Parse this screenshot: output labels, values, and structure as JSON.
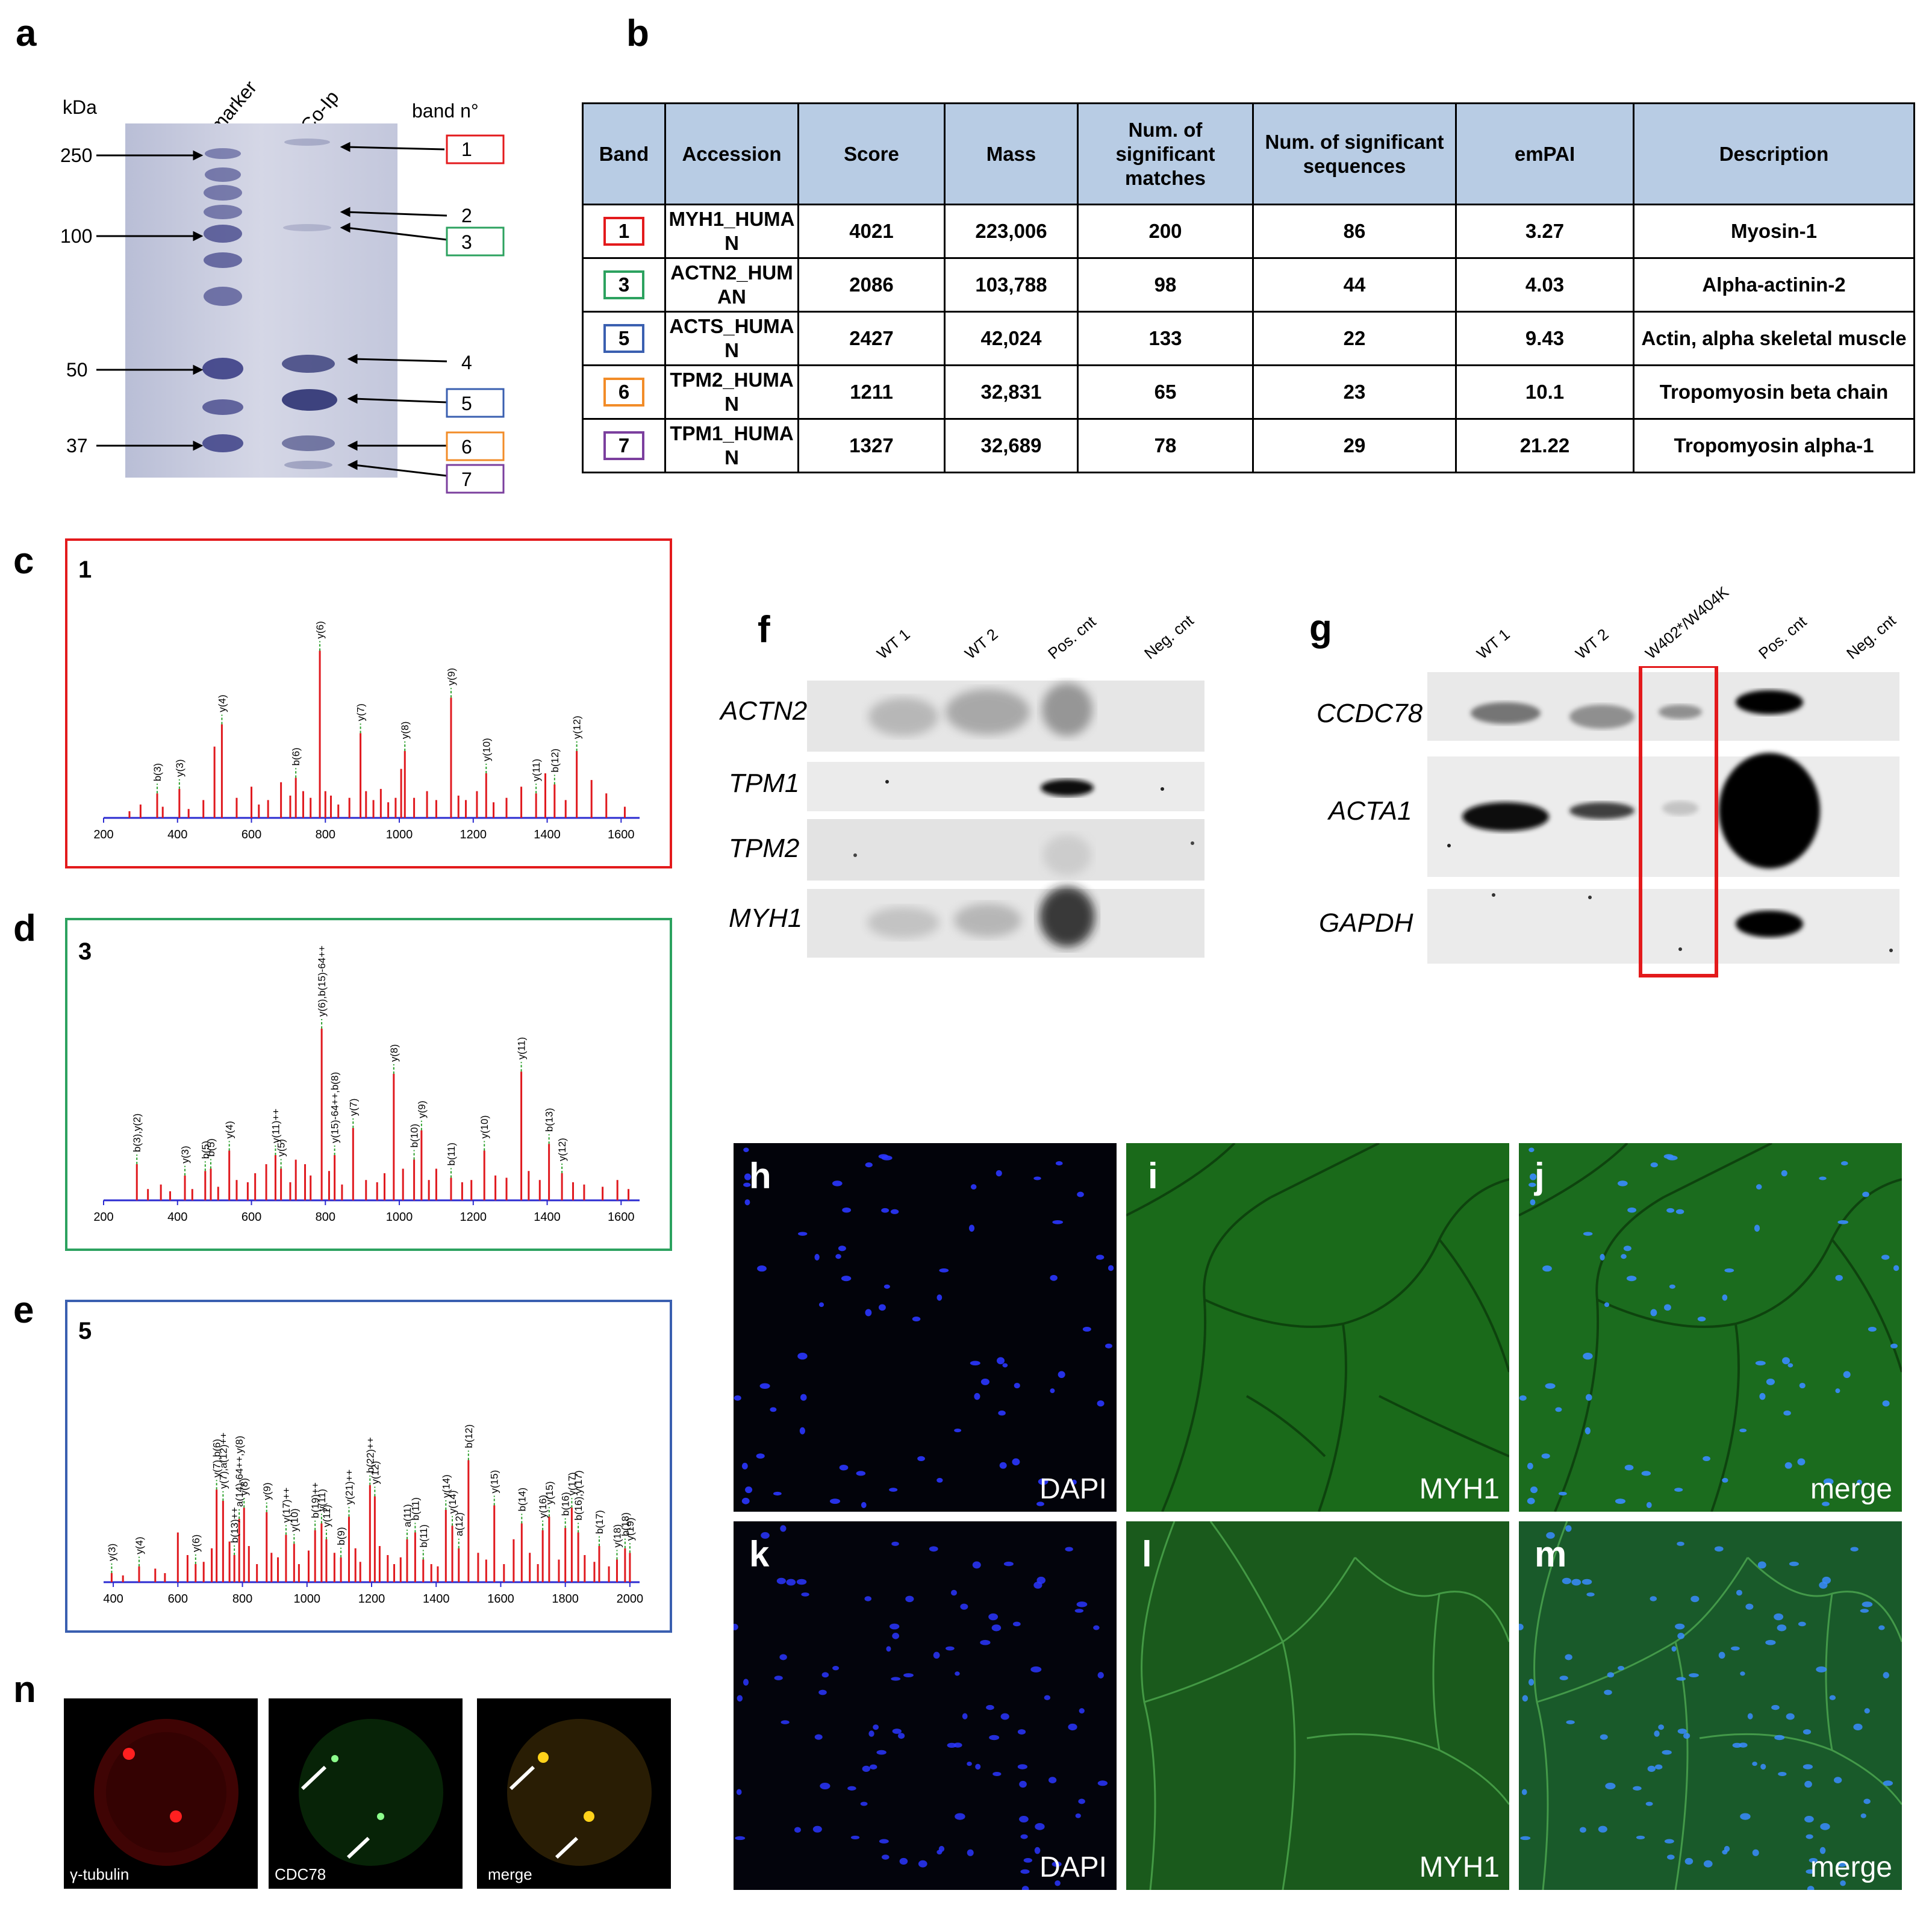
{
  "panel_labels": {
    "a": "a",
    "b": "b",
    "c": "c",
    "d": "d",
    "e": "e",
    "f": "f",
    "g": "g",
    "h": "h",
    "i": "i",
    "j": "j",
    "k": "k",
    "l": "l",
    "m": "m",
    "n": "n"
  },
  "gel": {
    "kda_label": "kDa",
    "lane_marker": "marker",
    "lane_coip": "Co-Ip",
    "band_header": "band n°",
    "markers": [
      "250",
      "100",
      "50",
      "37"
    ],
    "bands": [
      "1",
      "2",
      "3",
      "4",
      "5",
      "6",
      "7"
    ],
    "band_colors": {
      "1": "#e31a1c",
      "3": "#2ca25f",
      "5": "#3a5fb0",
      "6": "#f28c28",
      "7": "#7b3f9e"
    }
  },
  "ms_table": {
    "headers": [
      "Band",
      "Accession",
      "Score",
      "Mass",
      "Num. of significant matches",
      "Num. of significant sequences",
      "emPAI",
      "Description"
    ],
    "rows": [
      {
        "band": "1",
        "accession": "MYH1_HUMAN",
        "score": "4021",
        "mass": "223,006",
        "matches": "200",
        "sequences": "86",
        "empai": "3.27",
        "description": "Myosin-1",
        "color": "#e31a1c"
      },
      {
        "band": "3",
        "accession": "ACTN2_HUMAN",
        "score": "2086",
        "mass": "103,788",
        "matches": "98",
        "sequences": "44",
        "empai": "4.03",
        "description": "Alpha-actinin-2",
        "color": "#2ca25f"
      },
      {
        "band": "5",
        "accession": "ACTS_HUMAN",
        "score": "2427",
        "mass": "42,024",
        "matches": "133",
        "sequences": "22",
        "empai": "9.43",
        "description": "Actin, alpha skeletal muscle",
        "color": "#3a5fb0"
      },
      {
        "band": "6",
        "accession": "TPM2_HUMAN",
        "score": "1211",
        "mass": "32,831",
        "matches": "65",
        "sequences": "23",
        "empai": "10.1",
        "description": "Tropomyosin beta chain",
        "color": "#f28c28"
      },
      {
        "band": "7",
        "accession": "TPM1_HUMAN",
        "score": "1327",
        "mass": "32,689",
        "matches": "78",
        "sequences": "29",
        "empai": "21.22",
        "description": "Tropomyosin alpha-1",
        "color": "#7b3f9e"
      }
    ]
  },
  "chart_data": [
    {
      "type": "bar",
      "id": "c",
      "band": "1",
      "frame_color": "#e31a1c",
      "xlim": [
        200,
        1650
      ],
      "xticks": [
        200,
        400,
        600,
        800,
        1000,
        1200,
        1400,
        1600
      ],
      "peaks": [
        [
          270,
          3
        ],
        [
          300,
          6
        ],
        [
          345,
          11
        ],
        [
          360,
          5
        ],
        [
          405,
          13
        ],
        [
          430,
          4
        ],
        [
          470,
          8
        ],
        [
          500,
          32
        ],
        [
          520,
          42
        ],
        [
          560,
          9
        ],
        [
          600,
          14
        ],
        [
          620,
          6
        ],
        [
          645,
          8
        ],
        [
          680,
          16
        ],
        [
          705,
          10
        ],
        [
          720,
          18
        ],
        [
          740,
          12
        ],
        [
          760,
          9
        ],
        [
          785,
          75
        ],
        [
          800,
          12
        ],
        [
          815,
          10
        ],
        [
          835,
          6
        ],
        [
          865,
          9
        ],
        [
          895,
          38
        ],
        [
          910,
          12
        ],
        [
          930,
          8
        ],
        [
          950,
          13
        ],
        [
          970,
          7
        ],
        [
          990,
          9
        ],
        [
          1005,
          22
        ],
        [
          1015,
          30
        ],
        [
          1040,
          9
        ],
        [
          1075,
          12
        ],
        [
          1100,
          8
        ],
        [
          1140,
          54
        ],
        [
          1160,
          10
        ],
        [
          1180,
          8
        ],
        [
          1210,
          12
        ],
        [
          1235,
          20
        ],
        [
          1255,
          7
        ],
        [
          1290,
          9
        ],
        [
          1330,
          14
        ],
        [
          1370,
          11
        ],
        [
          1395,
          20
        ],
        [
          1420,
          15
        ],
        [
          1450,
          8
        ],
        [
          1480,
          30
        ],
        [
          1520,
          17
        ],
        [
          1560,
          11
        ],
        [
          1610,
          5
        ]
      ],
      "annotations": [
        [
          "b(3)",
          345,
          11
        ],
        [
          "y(3)",
          405,
          13
        ],
        [
          "y(4)",
          520,
          42
        ],
        [
          "b(6)",
          720,
          18
        ],
        [
          "y(6)",
          785,
          75
        ],
        [
          "y(7)",
          895,
          38
        ],
        [
          "y(8)",
          1015,
          30
        ],
        [
          "y(9)",
          1140,
          54
        ],
        [
          "y(10)",
          1235,
          20
        ],
        [
          "y(11)",
          1370,
          11
        ],
        [
          "b(12)",
          1420,
          15
        ],
        [
          "y(12)",
          1480,
          30
        ]
      ]
    },
    {
      "type": "bar",
      "id": "d",
      "band": "3",
      "frame_color": "#2ca25f",
      "xlim": [
        200,
        1650
      ],
      "xticks": [
        200,
        400,
        600,
        800,
        1000,
        1200,
        1400,
        1600
      ],
      "peaks": [
        [
          290,
          16
        ],
        [
          320,
          5
        ],
        [
          355,
          7
        ],
        [
          380,
          4
        ],
        [
          420,
          11
        ],
        [
          440,
          5
        ],
        [
          475,
          13
        ],
        [
          490,
          14
        ],
        [
          510,
          6
        ],
        [
          540,
          22
        ],
        [
          560,
          9
        ],
        [
          590,
          8
        ],
        [
          610,
          12
        ],
        [
          640,
          16
        ],
        [
          665,
          20
        ],
        [
          680,
          14
        ],
        [
          705,
          8
        ],
        [
          720,
          18
        ],
        [
          745,
          16
        ],
        [
          760,
          11
        ],
        [
          790,
          76
        ],
        [
          810,
          13
        ],
        [
          825,
          20
        ],
        [
          845,
          7
        ],
        [
          875,
          32
        ],
        [
          910,
          9
        ],
        [
          940,
          8
        ],
        [
          960,
          12
        ],
        [
          985,
          56
        ],
        [
          1010,
          14
        ],
        [
          1040,
          18
        ],
        [
          1060,
          31
        ],
        [
          1080,
          9
        ],
        [
          1100,
          14
        ],
        [
          1140,
          10
        ],
        [
          1170,
          8
        ],
        [
          1195,
          9
        ],
        [
          1230,
          22
        ],
        [
          1260,
          11
        ],
        [
          1290,
          10
        ],
        [
          1330,
          57
        ],
        [
          1350,
          13
        ],
        [
          1380,
          9
        ],
        [
          1405,
          25
        ],
        [
          1440,
          12
        ],
        [
          1470,
          8
        ],
        [
          1500,
          7
        ],
        [
          1550,
          6
        ],
        [
          1590,
          9
        ],
        [
          1620,
          5
        ]
      ],
      "annotations": [
        [
          "b(3),y(2)",
          290,
          16
        ],
        [
          "y(3)",
          420,
          11
        ],
        [
          "b(5)",
          475,
          13
        ],
        [
          "b(5)",
          490,
          14
        ],
        [
          "y(4)",
          540,
          22
        ],
        [
          "y(11)++",
          665,
          20
        ],
        [
          "y(5)",
          680,
          14
        ],
        [
          "y(6),b(15)-64++",
          790,
          76
        ],
        [
          "y(15)-64++,b(8)",
          825,
          20
        ],
        [
          "y(7)",
          875,
          32
        ],
        [
          "y(8)",
          985,
          56
        ],
        [
          "b(10)",
          1040,
          18
        ],
        [
          "y(9)",
          1060,
          31
        ],
        [
          "b(11)",
          1140,
          10
        ],
        [
          "y(10)",
          1230,
          22
        ],
        [
          "y(11)",
          1330,
          57
        ],
        [
          "b(13)",
          1405,
          25
        ],
        [
          "y(12)",
          1440,
          12
        ]
      ]
    },
    {
      "type": "bar",
      "id": "e",
      "band": "5",
      "frame_color": "#3a5fb0",
      "xlim": [
        370,
        2030
      ],
      "xticks": [
        400,
        600,
        800,
        1000,
        1200,
        1400,
        1600,
        1800,
        2000
      ],
      "peaks": [
        [
          395,
          4
        ],
        [
          430,
          3
        ],
        [
          480,
          7
        ],
        [
          530,
          6
        ],
        [
          560,
          4
        ],
        [
          600,
          22
        ],
        [
          630,
          12
        ],
        [
          655,
          8
        ],
        [
          680,
          9
        ],
        [
          705,
          15
        ],
        [
          720,
          41
        ],
        [
          740,
          36
        ],
        [
          760,
          18
        ],
        [
          775,
          12
        ],
        [
          790,
          28
        ],
        [
          805,
          33
        ],
        [
          820,
          16
        ],
        [
          845,
          8
        ],
        [
          875,
          31
        ],
        [
          890,
          13
        ],
        [
          910,
          11
        ],
        [
          935,
          21
        ],
        [
          960,
          17
        ],
        [
          975,
          8
        ],
        [
          1005,
          14
        ],
        [
          1025,
          23
        ],
        [
          1045,
          26
        ],
        [
          1060,
          19
        ],
        [
          1085,
          13
        ],
        [
          1105,
          11
        ],
        [
          1130,
          29
        ],
        [
          1150,
          15
        ],
        [
          1165,
          9
        ],
        [
          1195,
          43
        ],
        [
          1210,
          38
        ],
        [
          1225,
          16
        ],
        [
          1250,
          12
        ],
        [
          1270,
          8
        ],
        [
          1290,
          11
        ],
        [
          1310,
          19
        ],
        [
          1335,
          22
        ],
        [
          1360,
          10
        ],
        [
          1385,
          8
        ],
        [
          1405,
          7
        ],
        [
          1430,
          32
        ],
        [
          1450,
          25
        ],
        [
          1470,
          15
        ],
        [
          1500,
          54
        ],
        [
          1530,
          13
        ],
        [
          1555,
          10
        ],
        [
          1580,
          34
        ],
        [
          1610,
          8
        ],
        [
          1640,
          19
        ],
        [
          1665,
          26
        ],
        [
          1690,
          13
        ],
        [
          1715,
          8
        ],
        [
          1730,
          23
        ],
        [
          1750,
          29
        ],
        [
          1780,
          10
        ],
        [
          1800,
          24
        ],
        [
          1820,
          33
        ],
        [
          1840,
          22
        ],
        [
          1860,
          12
        ],
        [
          1890,
          9
        ],
        [
          1905,
          16
        ],
        [
          1935,
          7
        ],
        [
          1960,
          10
        ],
        [
          1985,
          15
        ],
        [
          2000,
          13
        ]
      ],
      "annotations": [
        [
          "y(3)",
          395,
          4
        ],
        [
          "y(4)",
          480,
          7
        ],
        [
          "y(6)",
          655,
          8
        ],
        [
          "y(7),b(6)",
          720,
          41
        ],
        [
          "y(7),a(12)++",
          740,
          36
        ],
        [
          "b(13)++",
          775,
          12
        ],
        [
          "a(14)-64++,y(8)",
          790,
          28
        ],
        [
          "y(8)",
          805,
          33
        ],
        [
          "y(9)",
          875,
          31
        ],
        [
          "y(17)++",
          935,
          21
        ],
        [
          "y(10)",
          960,
          17
        ],
        [
          "b(19)++",
          1025,
          23
        ],
        [
          "y(11)",
          1045,
          26
        ],
        [
          "y(11)",
          1060,
          19
        ],
        [
          "b(9)",
          1105,
          11
        ],
        [
          "y(21)++",
          1130,
          29
        ],
        [
          "b(22)++",
          1195,
          43
        ],
        [
          "y(12)",
          1210,
          38
        ],
        [
          "a(11)",
          1310,
          19
        ],
        [
          "b(11)",
          1335,
          22
        ],
        [
          "b(11)",
          1360,
          10
        ],
        [
          "y(14)",
          1430,
          32
        ],
        [
          "y(14)",
          1450,
          25
        ],
        [
          "a(12)",
          1470,
          15
        ],
        [
          "b(12)",
          1500,
          54
        ],
        [
          "y(15)",
          1580,
          34
        ],
        [
          "b(14)",
          1665,
          26
        ],
        [
          "y(16)",
          1730,
          23
        ],
        [
          "y(15)",
          1750,
          29
        ],
        [
          "b(16)",
          1800,
          24
        ],
        [
          "y(17)",
          1820,
          33
        ],
        [
          "b(16),y(17)",
          1840,
          22
        ],
        [
          "b(17)",
          1905,
          16
        ],
        [
          "y(18)",
          1960,
          10
        ],
        [
          "b(18)",
          1985,
          15
        ],
        [
          "y(19)",
          2000,
          13
        ]
      ]
    }
  ],
  "wb_f": {
    "columns": [
      "WT 1",
      "WT 2",
      "Pos. cnt",
      "Neg. cnt"
    ],
    "rows": [
      "ACTN2",
      "TPM1",
      "TPM2",
      "MYH1"
    ]
  },
  "wb_g": {
    "columns": [
      "WT 1",
      "WT 2",
      "W402*/W404K",
      "Pos. cnt",
      "Neg. cnt"
    ],
    "rows": [
      "CCDC78",
      "ACTA1",
      "GAPDH"
    ]
  },
  "micro": {
    "h": "DAPI",
    "i": "MYH1",
    "j": "merge",
    "k": "DAPI",
    "l": "MYH1",
    "m": "merge"
  },
  "panel_n": {
    "labels": [
      "γ-tubulin",
      "CDC78",
      "merge"
    ]
  },
  "colors": {
    "red": "#e31a1c",
    "green": "#2ca25f",
    "blue": "#3a5fb0",
    "orange": "#f28c28",
    "purple": "#7b3f9e",
    "peak": "#e0191e",
    "axis": "#2b2bd1",
    "header_bg": "#b8cce4"
  }
}
